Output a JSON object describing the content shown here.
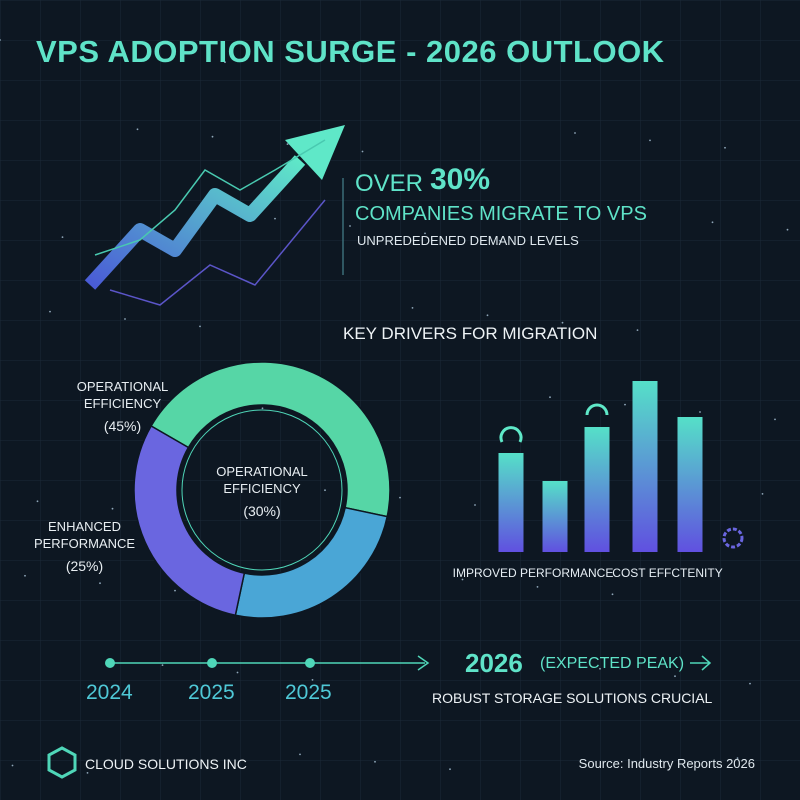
{
  "title": "VPS ADOPTION SURGE - 2026 OUTLOOK",
  "headline": {
    "prefix": "OVER",
    "figure": "30%",
    "text": "COMPANIES MIGRATE TO VPS",
    "subtext": "UNPREDEDENED DEMAND LEVELS"
  },
  "section_title": "KEY DRIVERS FOR MIGRATION",
  "chart_data": [
    {
      "type": "donut",
      "categories": [
        "OPERATIONAL EFFICIENCY",
        "ENHANCED PERFORMANCE",
        "OPERATIONAL EFFICIENCY"
      ],
      "values": [
        45,
        25,
        30
      ],
      "value_labels": [
        "(45%)",
        "(25%)",
        "(30%)"
      ],
      "colors": [
        "#56d6a6",
        "#4aa6d6",
        "#6a66e0"
      ]
    },
    {
      "type": "bar",
      "categories": [
        "IMPROVED PERFORMANCE",
        null,
        null,
        "COST EFFCTENITY",
        null
      ],
      "values": [
        99,
        71,
        125,
        171,
        135
      ],
      "color": "#55e0c8"
    }
  ],
  "timeline": {
    "years": [
      "2024",
      "2025",
      "2025"
    ],
    "peak": "2026",
    "peak_note": "(EXPECTED PEAK)",
    "caption": "ROBUST STORAGE SOLUTIONS CRUCIAL"
  },
  "footer": {
    "company": "CLOUD SOLUTIONS INC",
    "source": "Source: Industry Reports 2026"
  }
}
